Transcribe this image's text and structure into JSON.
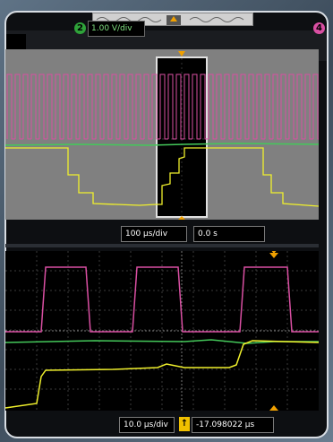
{
  "channels": {
    "ch2": {
      "number": "2",
      "scale": "1.00 V/div",
      "color": "#44c85a"
    },
    "ch4": {
      "number": "4",
      "color": "#d94fa2"
    },
    "ch1_color": "#f0f02c"
  },
  "main_timebase": {
    "scale": "100 µs/div",
    "delay": "0.0 s"
  },
  "zoom_timebase": {
    "scale": "10.0 µs/div",
    "delay": "-17.098022 µs"
  },
  "icons": [
    "overview-waveform-icon",
    "trigger-marker-icon",
    "delay-reference-icon"
  ]
}
